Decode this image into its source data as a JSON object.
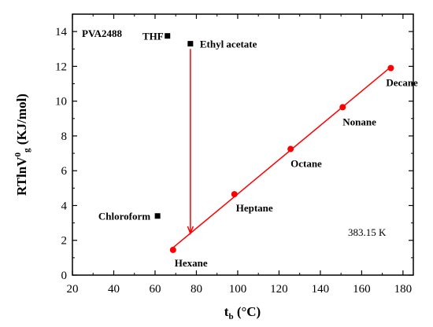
{
  "chart_data": {
    "type": "scatter",
    "annotation": "PVA2488",
    "temperature_label": "383.15 K",
    "xlabel": {
      "main": "t",
      "sub": "b",
      "unit": " (°C)"
    },
    "ylabel": {
      "pre": "RTlnV",
      "sup": "0",
      "sub": "g",
      "unit": " (KJ/mol)"
    },
    "xlim": [
      20,
      185
    ],
    "ylim": [
      0,
      15
    ],
    "xticks": [
      "20",
      "40",
      "60",
      "80",
      "100",
      "120",
      "140",
      "160",
      "180"
    ],
    "yticks": [
      "0",
      "2",
      "4",
      "6",
      "8",
      "10",
      "12",
      "14"
    ],
    "series": [
      {
        "marker": "circle",
        "color": "#ff0000",
        "fit_line": true,
        "points": [
          {
            "label": "Hexane",
            "x": 68.7,
            "y": 1.45
          },
          {
            "label": "Heptane",
            "x": 98.4,
            "y": 4.65
          },
          {
            "label": "Octane",
            "x": 125.6,
            "y": 7.25
          },
          {
            "label": "Nonane",
            "x": 150.8,
            "y": 9.65
          },
          {
            "label": "Decane",
            "x": 174.1,
            "y": 11.9
          }
        ]
      },
      {
        "marker": "square",
        "color": "#000000",
        "fit_line": false,
        "points": [
          {
            "label": "THF",
            "x": 66,
            "y": 13.75
          },
          {
            "label": "Ethyl acetate",
            "x": 77.1,
            "y": 13.3
          },
          {
            "label": "Chloroform",
            "x": 61.2,
            "y": 3.4
          }
        ]
      }
    ],
    "arrow": {
      "x": 77.1,
      "y_from": 13.0,
      "y_to": 2.4,
      "color": "#ff0000"
    }
  }
}
